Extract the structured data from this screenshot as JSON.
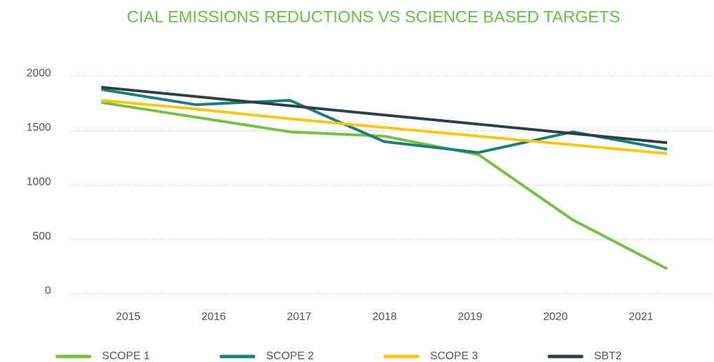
{
  "chart_data": {
    "type": "line",
    "title": "CIAL EMISSIONS REDUCTIONS VS SCIENCE BASED TARGETS",
    "categories": [
      "2015",
      "2016",
      "2017",
      "2018",
      "2019",
      "2020",
      "2021"
    ],
    "series": [
      {
        "name": "SCOPE 1",
        "color": "#76c043",
        "values": [
          1760,
          1625,
          1490,
          1450,
          1280,
          680,
          230
        ]
      },
      {
        "name": "SCOPE 2",
        "color": "#1a7f7a",
        "values": [
          1880,
          1740,
          1780,
          1400,
          1300,
          1490,
          1330
        ]
      },
      {
        "name": "SCOPE 3",
        "color": "#f9c80e",
        "values": [
          1780,
          1700,
          1610,
          1530,
          1450,
          1370,
          1290
        ]
      },
      {
        "name": "SBT2",
        "color": "#2f3f48",
        "values": [
          1900,
          1815,
          1730,
          1645,
          1560,
          1475,
          1390
        ]
      }
    ],
    "ylim": [
      0,
      2000
    ],
    "yticks": [
      0,
      500,
      1000,
      1500,
      2000
    ],
    "grid": true,
    "legend": "bottom"
  }
}
